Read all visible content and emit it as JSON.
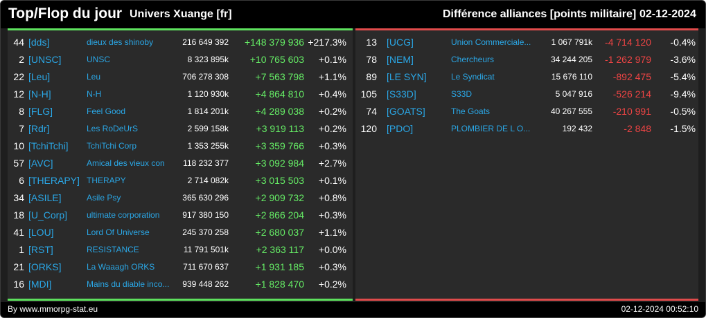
{
  "header": {
    "title": "Top/Flop du jour",
    "universe": "Univers Xuange [fr]",
    "subtitle": "Différence alliances [points militaire]",
    "date": "02-12-2024"
  },
  "colors": {
    "gain": "#66ee66",
    "loss": "#ee4444",
    "tag": "#2aa7e6",
    "top_border": "#5ee25e",
    "flop_border": "#e04b4b"
  },
  "top": [
    {
      "rank": "44",
      "tag": "[dds]",
      "name": "dieux des shinoby",
      "points": "216 649 392",
      "diff": "+148 379 936",
      "pct": "+217.3%"
    },
    {
      "rank": "2",
      "tag": "[UNSC]",
      "name": "UNSC",
      "points": "8 323 895k",
      "diff": "+10 765 603",
      "pct": "+0.1%"
    },
    {
      "rank": "22",
      "tag": "[Leu]",
      "name": "Leu",
      "points": "706 278 308",
      "diff": "+7 563 798",
      "pct": "+1.1%"
    },
    {
      "rank": "12",
      "tag": "[N-H]",
      "name": "N-H",
      "points": "1 120 930k",
      "diff": "+4 864 810",
      "pct": "+0.4%"
    },
    {
      "rank": "8",
      "tag": "[FLG]",
      "name": "Feel Good",
      "points": "1 814 201k",
      "diff": "+4 289 038",
      "pct": "+0.2%"
    },
    {
      "rank": "7",
      "tag": "[Rdr]",
      "name": "Les RoDeUrS",
      "points": "2 599 158k",
      "diff": "+3 919 113",
      "pct": "+0.2%"
    },
    {
      "rank": "10",
      "tag": "[TchiTchi]",
      "name": "TchiTchi Corp",
      "points": "1 353 255k",
      "diff": "+3 359 766",
      "pct": "+0.3%"
    },
    {
      "rank": "57",
      "tag": "[AVC]",
      "name": "Amical des vieux con",
      "points": "118 232 377",
      "diff": "+3 092 984",
      "pct": "+2.7%"
    },
    {
      "rank": "6",
      "tag": "[THERAPY]",
      "name": "THERAPY",
      "points": "2 714 082k",
      "diff": "+3 015 503",
      "pct": "+0.1%"
    },
    {
      "rank": "34",
      "tag": "[ASILE]",
      "name": "Asile Psy",
      "points": "365 630 296",
      "diff": "+2 909 732",
      "pct": "+0.8%"
    },
    {
      "rank": "18",
      "tag": "[U_Corp]",
      "name": "ultimate corporation",
      "points": "917 380 150",
      "diff": "+2 866 204",
      "pct": "+0.3%"
    },
    {
      "rank": "41",
      "tag": "[LOU]",
      "name": "Lord Of Universe",
      "points": "245 370 258",
      "diff": "+2 680 037",
      "pct": "+1.1%"
    },
    {
      "rank": "1",
      "tag": "[RST]",
      "name": "RESISTANCE",
      "points": "11 791 501k",
      "diff": "+2 363 117",
      "pct": "+0.0%"
    },
    {
      "rank": "21",
      "tag": "[ORKS]",
      "name": "La Waaagh ORKS",
      "points": "711 670 637",
      "diff": "+1 931 185",
      "pct": "+0.3%"
    },
    {
      "rank": "16",
      "tag": "[MDI]",
      "name": "Mains du diable inco...",
      "points": "939 448 262",
      "diff": "+1 828 470",
      "pct": "+0.2%"
    }
  ],
  "flop": [
    {
      "rank": "13",
      "tag": "[UCG]",
      "name": "Union Commerciale...",
      "points": "1 067 791k",
      "diff": "-4 714 120",
      "pct": "-0.4%"
    },
    {
      "rank": "78",
      "tag": "[NEM]",
      "name": "Chercheurs",
      "points": "34 244 205",
      "diff": "-1 262 979",
      "pct": "-3.6%"
    },
    {
      "rank": "89",
      "tag": "[LE SYN]",
      "name": "Le Syndicat",
      "points": "15 676 110",
      "diff": "-892 475",
      "pct": "-5.4%"
    },
    {
      "rank": "105",
      "tag": "[S33D]",
      "name": "S33D",
      "points": "5 047 916",
      "diff": "-526 214",
      "pct": "-9.4%"
    },
    {
      "rank": "74",
      "tag": "[GOATS]",
      "name": "The Goats",
      "points": "40 267 555",
      "diff": "-210 991",
      "pct": "-0.5%"
    },
    {
      "rank": "120",
      "tag": "[PDO]",
      "name": "PLOMBIER DE L O...",
      "points": "192 432",
      "diff": "-2 848",
      "pct": "-1.5%"
    }
  ],
  "footer": {
    "source": "By www.mmorpg-stat.eu",
    "timestamp": "02-12-2024 00:52:10"
  }
}
